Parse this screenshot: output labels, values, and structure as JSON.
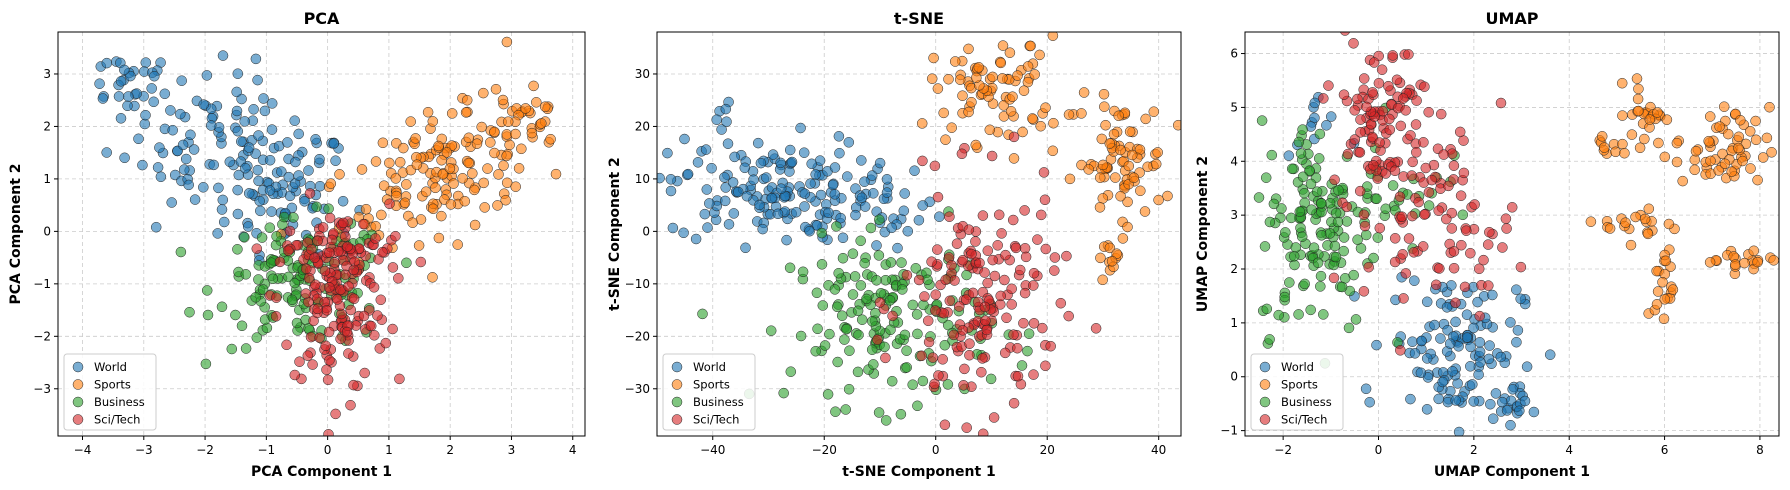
{
  "colors": {
    "World": "#1f77b4",
    "Sports": "#ff7f0e",
    "Business": "#2ca02c",
    "Sci/Tech": "#d62728"
  },
  "legend": [
    "World",
    "Sports",
    "Business",
    "Sci/Tech"
  ],
  "chart_data": [
    {
      "type": "scatter",
      "title": "PCA",
      "xlabel": "PCA Component 1",
      "ylabel": "PCA Component 2",
      "xlim": [
        -4.4,
        4.2
      ],
      "ylim": [
        -3.9,
        3.8
      ],
      "xticks": [
        -4,
        -3,
        -2,
        -1,
        0,
        1,
        2,
        3,
        4
      ],
      "yticks": [
        -3,
        -2,
        -1,
        0,
        1,
        2,
        3
      ],
      "grid": true,
      "legend_position": "lower-left",
      "series": [
        {
          "name": "World",
          "clusters": [
            {
              "cx": -1.6,
              "cy": 1.5,
              "sx": 0.9,
              "sy": 0.7,
              "n": 130,
              "rot": -0.55
            },
            {
              "cx": -3.3,
              "cy": 2.9,
              "sx": 0.4,
              "sy": 0.3,
              "n": 25
            },
            {
              "cx": -0.6,
              "cy": 0.6,
              "sx": 0.5,
              "sy": 0.5,
              "n": 40
            }
          ]
        },
        {
          "name": "Sports",
          "clusters": [
            {
              "cx": 1.9,
              "cy": 1.1,
              "sx": 1.0,
              "sy": 0.5,
              "n": 150,
              "rot": 0.45
            },
            {
              "cx": 3.1,
              "cy": 2.3,
              "sx": 0.4,
              "sy": 0.4,
              "n": 25
            }
          ]
        },
        {
          "name": "Business",
          "clusters": [
            {
              "cx": -0.4,
              "cy": -1.0,
              "sx": 0.7,
              "sy": 0.6,
              "n": 140
            }
          ]
        },
        {
          "name": "Sci/Tech",
          "clusters": [
            {
              "cx": 0.1,
              "cy": -1.3,
              "sx": 0.45,
              "sy": 0.9,
              "n": 150
            },
            {
              "cx": 0.3,
              "cy": -0.4,
              "sx": 0.5,
              "sy": 0.3,
              "n": 40
            }
          ]
        }
      ]
    },
    {
      "type": "scatter",
      "title": "t-SNE",
      "xlabel": "t-SNE Component 1",
      "ylabel": "t-SNE Component 2",
      "xlim": [
        -50,
        44
      ],
      "ylim": [
        -39,
        38
      ],
      "xticks": [
        -40,
        -20,
        0,
        20,
        40
      ],
      "yticks": [
        -30,
        -20,
        -10,
        0,
        10,
        20,
        30
      ],
      "grid": true,
      "legend_position": "lower-left",
      "series": [
        {
          "name": "World",
          "clusters": [
            {
              "cx": -30,
              "cy": 8,
              "sx": 9,
              "sy": 5,
              "n": 150
            },
            {
              "cx": -8,
              "cy": 3,
              "sx": 5,
              "sy": 4,
              "n": 30
            },
            {
              "cx": -38,
              "cy": 21,
              "sx": 1,
              "sy": 2,
              "n": 6
            }
          ]
        },
        {
          "name": "Sports",
          "clusters": [
            {
              "cx": 11,
              "cy": 27,
              "sx": 6,
              "sy": 5,
              "n": 80
            },
            {
              "cx": 33,
              "cy": 13,
              "sx": 4,
              "sy": 6,
              "n": 80
            },
            {
              "cx": 32,
              "cy": -5,
              "sx": 1.5,
              "sy": 1.5,
              "n": 10
            }
          ]
        },
        {
          "name": "Business",
          "clusters": [
            {
              "cx": -8,
              "cy": -17,
              "sx": 9,
              "sy": 8,
              "n": 170
            }
          ]
        },
        {
          "name": "Sci/Tech",
          "clusters": [
            {
              "cx": 8,
              "cy": -14,
              "sx": 7,
              "sy": 11,
              "n": 170
            }
          ]
        }
      ]
    },
    {
      "type": "scatter",
      "title": "UMAP",
      "xlabel": "UMAP Component 1",
      "ylabel": "UMAP Component 2",
      "xlim": [
        -2.8,
        8.4
      ],
      "ylim": [
        -1.1,
        6.4
      ],
      "xticks": [
        -2,
        0,
        2,
        4,
        6,
        8
      ],
      "yticks": [
        -1,
        0,
        1,
        2,
        3,
        4,
        5,
        6
      ],
      "grid": true,
      "legend_position": "lower-left",
      "series": [
        {
          "name": "World",
          "clusters": [
            {
              "cx": 1.6,
              "cy": 0.6,
              "sx": 0.7,
              "sy": 0.7,
              "n": 120
            },
            {
              "cx": 2.7,
              "cy": -0.5,
              "sx": 0.2,
              "sy": 0.15,
              "n": 20
            },
            {
              "cx": -1.3,
              "cy": 4.5,
              "sx": 0.3,
              "sy": 0.4,
              "n": 12
            }
          ]
        },
        {
          "name": "Sports",
          "clusters": [
            {
              "cx": 7.2,
              "cy": 4.2,
              "sx": 0.5,
              "sy": 0.4,
              "n": 60
            },
            {
              "cx": 5.6,
              "cy": 4.9,
              "sx": 0.2,
              "sy": 0.3,
              "n": 25
            },
            {
              "cx": 6.0,
              "cy": 1.7,
              "sx": 0.1,
              "sy": 0.35,
              "n": 20
            },
            {
              "cx": 7.6,
              "cy": 2.2,
              "sx": 0.35,
              "sy": 0.12,
              "n": 20
            },
            {
              "cx": 5.5,
              "cy": 2.8,
              "sx": 0.4,
              "sy": 0.15,
              "n": 20
            },
            {
              "cx": 4.9,
              "cy": 4.3,
              "sx": 0.2,
              "sy": 0.15,
              "n": 10
            }
          ]
        },
        {
          "name": "Business",
          "clusters": [
            {
              "cx": -1.3,
              "cy": 2.8,
              "sx": 0.6,
              "sy": 1.0,
              "n": 140
            },
            {
              "cx": 0.4,
              "cy": 3.5,
              "sx": 0.5,
              "sy": 0.6,
              "n": 30
            }
          ]
        },
        {
          "name": "Sci/Tech",
          "clusters": [
            {
              "cx": 0.0,
              "cy": 4.9,
              "sx": 0.5,
              "sy": 0.7,
              "n": 100
            },
            {
              "cx": 1.3,
              "cy": 2.9,
              "sx": 0.8,
              "sy": 0.8,
              "n": 90
            }
          ]
        }
      ]
    }
  ]
}
